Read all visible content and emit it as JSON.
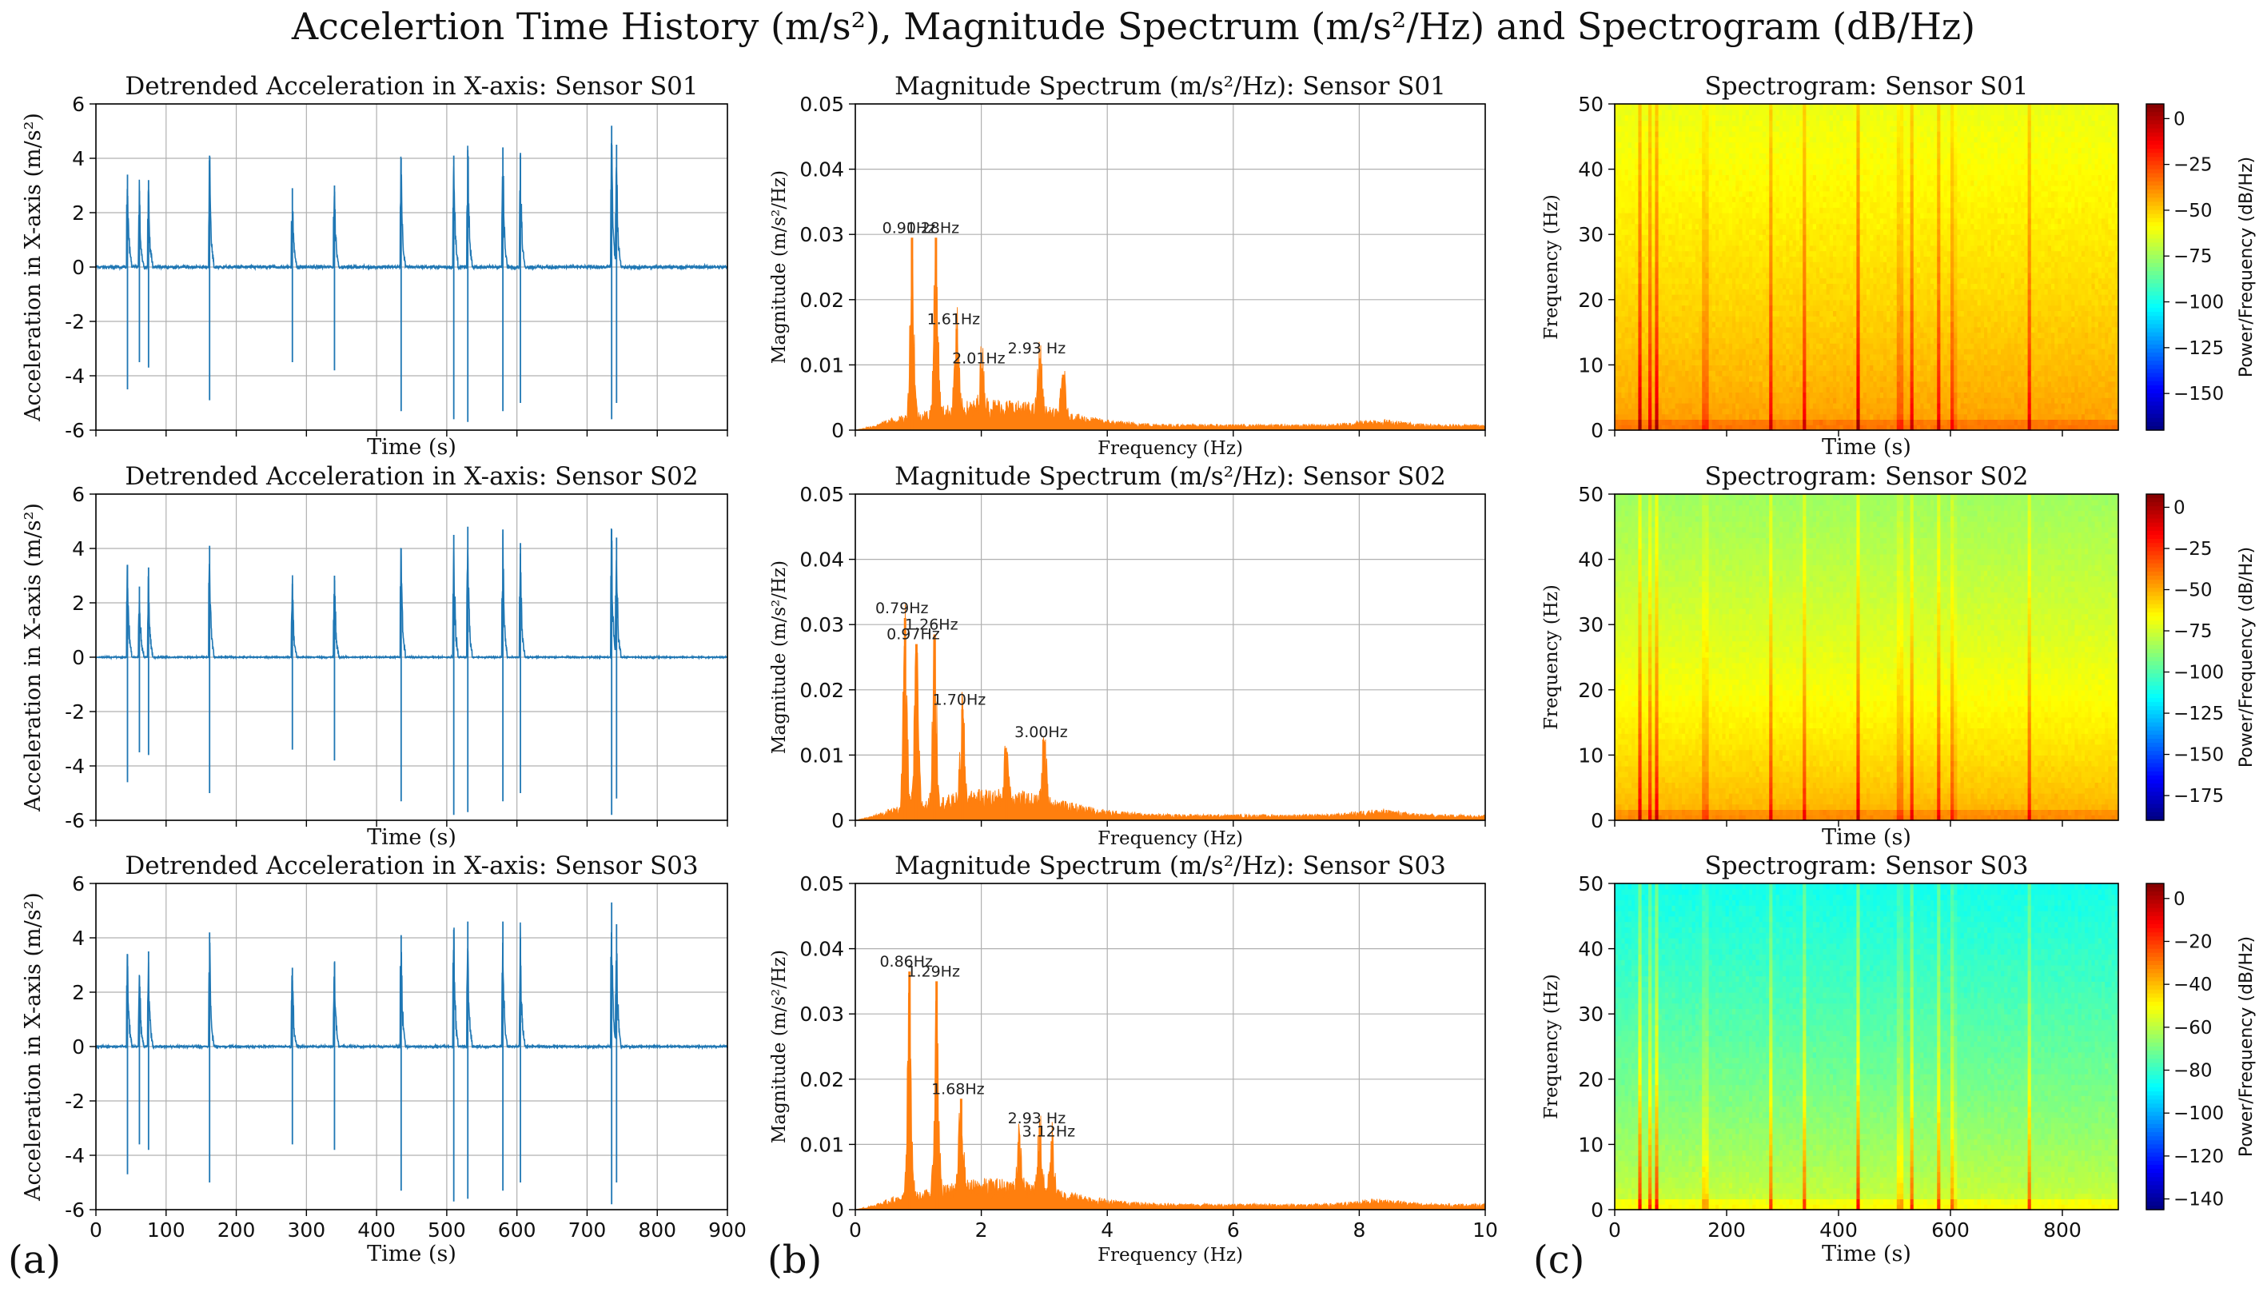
{
  "title": "Accelertion Time History (m/s²), Magnitude Spectrum (m/s²/Hz) and Spectrogram (dB/Hz)",
  "panel_labels": [
    "(a)",
    "(b)",
    "(c)"
  ],
  "colors": {
    "time_series": "#1f77b4",
    "spectrum": "#ff7f0e",
    "grid": "#b0b0b0"
  },
  "chart_data": [
    {
      "id": "ts1",
      "type": "line",
      "title": "Detrended Acceleration in X-axis: Sensor S01",
      "xlabel": "Time (s)",
      "ylabel": "Acceleration in X-axis (m/s²)",
      "xlim": [
        0,
        900
      ],
      "ylim": [
        -6,
        6
      ],
      "xticks": [
        0,
        100,
        200,
        300,
        400,
        500,
        600,
        700,
        800,
        900
      ],
      "yticks": [
        -6,
        -4,
        -2,
        0,
        2,
        4,
        6
      ],
      "show_xticklabels": false,
      "baseline_noise": 0.1,
      "events": [
        [
          45,
          3.4,
          -4.5
        ],
        [
          62,
          2.8,
          -3.5
        ],
        [
          75,
          3.2,
          -3.7
        ],
        [
          162,
          4.1,
          -4.9
        ],
        [
          280,
          2.9,
          -3.5
        ],
        [
          340,
          3.0,
          -3.8
        ],
        [
          435,
          4.0,
          -5.3
        ],
        [
          510,
          4.1,
          -5.6
        ],
        [
          530,
          4.3,
          -5.7
        ],
        [
          580,
          4.4,
          -5.3
        ],
        [
          605,
          4.2,
          -5.0
        ],
        [
          735,
          5.2,
          -5.6
        ],
        [
          742,
          4.5,
          -5.0
        ]
      ]
    },
    {
      "id": "sp1",
      "type": "area",
      "title": "Magnitude Spectrum (m/s²/Hz): Sensor S01",
      "xlabel": "Frequency (Hz)",
      "ylabel": "Magnitude (m/s²/Hz)",
      "xlim": [
        0,
        10
      ],
      "ylim": [
        0,
        0.05
      ],
      "xticks": [
        0,
        2,
        4,
        6,
        8,
        10
      ],
      "yticks": [
        0,
        0.01,
        0.02,
        0.03,
        0.04,
        0.05
      ],
      "show_xticklabels": false,
      "peaks": [
        [
          0.9,
          0.0295
        ],
        [
          1.28,
          0.0295
        ],
        [
          1.61,
          0.0155
        ],
        [
          2.01,
          0.0095
        ],
        [
          2.93,
          0.011
        ],
        [
          3.3,
          0.0085
        ]
      ],
      "annotations": [
        [
          "0.90Hz",
          0.9,
          0.0295
        ],
        [
          "1.28Hz",
          1.28,
          0.0295
        ],
        [
          "1.61Hz",
          1.61,
          0.0155
        ],
        [
          "2.01Hz",
          2.01,
          0.0095
        ],
        [
          "2.93 Hz",
          2.93,
          0.011
        ]
      ]
    },
    {
      "id": "sg1",
      "type": "heatmap",
      "title": "Spectrogram: Sensor S01",
      "xlabel": "Time (s)",
      "ylabel": "Frequency (Hz)",
      "clabel": "Power/Frequency (dB/Hz)",
      "xlim": [
        0,
        900
      ],
      "ylim": [
        0,
        50
      ],
      "xticks": [
        0,
        200,
        400,
        600,
        800
      ],
      "yticks": [
        0,
        10,
        20,
        30,
        40,
        50
      ],
      "show_xticklabels": false,
      "clim": [
        -170,
        8
      ],
      "cticks": [
        0,
        -25,
        -50,
        -75,
        -100,
        -125,
        -150
      ],
      "level_top": -62,
      "level_bottom": -40,
      "events": [
        45,
        62,
        75,
        162,
        280,
        340,
        435,
        510,
        530,
        580,
        605,
        740
      ]
    },
    {
      "id": "ts2",
      "type": "line",
      "title": "Detrended Acceleration in X-axis: Sensor S02",
      "xlabel": "Time (s)",
      "ylabel": "Acceleration in X-axis (m/s²)",
      "xlim": [
        0,
        900
      ],
      "ylim": [
        -6,
        6
      ],
      "xticks": [
        0,
        100,
        200,
        300,
        400,
        500,
        600,
        700,
        800,
        900
      ],
      "yticks": [
        -6,
        -4,
        -2,
        0,
        2,
        4,
        6
      ],
      "show_xticklabels": false,
      "baseline_noise": 0.04,
      "events": [
        [
          45,
          3.4,
          -4.6
        ],
        [
          62,
          2.6,
          -3.5
        ],
        [
          75,
          3.3,
          -3.6
        ],
        [
          162,
          4.1,
          -5.0
        ],
        [
          280,
          2.7,
          -3.4
        ],
        [
          340,
          3.0,
          -3.8
        ],
        [
          435,
          4.0,
          -5.3
        ],
        [
          510,
          4.5,
          -5.8
        ],
        [
          530,
          4.8,
          -5.7
        ],
        [
          580,
          4.7,
          -5.3
        ],
        [
          605,
          4.2,
          -5.0
        ],
        [
          735,
          4.7,
          -5.8
        ],
        [
          742,
          4.4,
          -5.2
        ]
      ]
    },
    {
      "id": "sp2",
      "type": "area",
      "title": "Magnitude Spectrum (m/s²/Hz): Sensor S02",
      "xlabel": "Frequency (Hz)",
      "ylabel": "Magnitude (m/s²/Hz)",
      "xlim": [
        0,
        10
      ],
      "ylim": [
        0,
        0.05
      ],
      "xticks": [
        0,
        2,
        4,
        6,
        8,
        10
      ],
      "yticks": [
        0,
        0.01,
        0.02,
        0.03,
        0.04,
        0.05
      ],
      "show_xticklabels": false,
      "peaks": [
        [
          0.79,
          0.031
        ],
        [
          0.97,
          0.027
        ],
        [
          1.26,
          0.0285
        ],
        [
          1.7,
          0.017
        ],
        [
          2.4,
          0.01
        ],
        [
          3.0,
          0.012
        ]
      ],
      "annotations": [
        [
          "0.79Hz",
          0.79,
          0.031
        ],
        [
          "0.97Hz",
          0.97,
          0.027
        ],
        [
          "1.26Hz",
          1.26,
          0.0285
        ],
        [
          "1.70Hz",
          1.7,
          0.017
        ],
        [
          "3.00Hz",
          3.0,
          0.012
        ]
      ]
    },
    {
      "id": "sg2",
      "type": "heatmap",
      "title": "Spectrogram: Sensor S02",
      "xlabel": "Time (s)",
      "ylabel": "Frequency (Hz)",
      "clabel": "Power/Frequency (dB/Hz)",
      "xlim": [
        0,
        900
      ],
      "ylim": [
        0,
        50
      ],
      "xticks": [
        0,
        200,
        400,
        600,
        800
      ],
      "yticks": [
        0,
        10,
        20,
        30,
        40,
        50
      ],
      "show_xticklabels": false,
      "clim": [
        -190,
        8
      ],
      "cticks": [
        0,
        -25,
        -50,
        -75,
        -100,
        -125,
        -150,
        -175
      ],
      "level_top": -85,
      "level_bottom": -48,
      "events": [
        45,
        62,
        75,
        162,
        280,
        340,
        435,
        510,
        530,
        580,
        605,
        740
      ]
    },
    {
      "id": "ts3",
      "type": "line",
      "title": "Detrended Acceleration in X-axis: Sensor S03",
      "xlabel": "Time (s)",
      "ylabel": "Acceleration in X-axis (m/s²)",
      "xlim": [
        0,
        900
      ],
      "ylim": [
        -6,
        6
      ],
      "xticks": [
        0,
        100,
        200,
        300,
        400,
        500,
        600,
        700,
        800,
        900
      ],
      "yticks": [
        -6,
        -4,
        -2,
        0,
        2,
        4,
        6
      ],
      "show_xticklabels": true,
      "baseline_noise": 0.06,
      "events": [
        [
          45,
          3.4,
          -4.7
        ],
        [
          62,
          2.6,
          -3.6
        ],
        [
          75,
          3.5,
          -3.8
        ],
        [
          162,
          4.2,
          -5.0
        ],
        [
          280,
          2.9,
          -3.6
        ],
        [
          340,
          3.1,
          -3.8
        ],
        [
          435,
          4.1,
          -5.3
        ],
        [
          510,
          4.3,
          -5.7
        ],
        [
          530,
          4.6,
          -5.6
        ],
        [
          580,
          4.6,
          -5.3
        ],
        [
          605,
          4.0,
          -5.0
        ],
        [
          735,
          5.3,
          -5.8
        ],
        [
          742,
          4.5,
          -5.0
        ]
      ]
    },
    {
      "id": "sp3",
      "type": "area",
      "title": "Magnitude Spectrum (m/s²/Hz): Sensor S03",
      "xlabel": "Frequency (Hz)",
      "ylabel": "Magnitude (m/s²/Hz)",
      "xlim": [
        0,
        10
      ],
      "ylim": [
        0,
        0.05
      ],
      "xticks": [
        0,
        2,
        4,
        6,
        8,
        10
      ],
      "yticks": [
        0,
        0.01,
        0.02,
        0.03,
        0.04,
        0.05
      ],
      "show_xticklabels": true,
      "peaks": [
        [
          0.86,
          0.0365
        ],
        [
          1.29,
          0.035
        ],
        [
          1.68,
          0.017
        ],
        [
          2.6,
          0.009
        ],
        [
          2.93,
          0.0125
        ],
        [
          3.12,
          0.0105
        ]
      ],
      "annotations": [
        [
          "0.86Hz",
          0.86,
          0.0365
        ],
        [
          "1.29Hz",
          1.29,
          0.035
        ],
        [
          "1.68Hz",
          1.68,
          0.017
        ],
        [
          "2.93 Hz",
          2.93,
          0.0125
        ],
        [
          "3.12Hz",
          3.12,
          0.0105
        ]
      ]
    },
    {
      "id": "sg3",
      "type": "heatmap",
      "title": "Spectrogram: Sensor S03",
      "xlabel": "Time (s)",
      "ylabel": "Frequency (Hz)",
      "clabel": "Power/Frequency (dB/Hz)",
      "xlim": [
        0,
        900
      ],
      "ylim": [
        0,
        50
      ],
      "xticks": [
        0,
        200,
        400,
        600,
        800
      ],
      "yticks": [
        0,
        10,
        20,
        30,
        40,
        50
      ],
      "show_xticklabels": true,
      "clim": [
        -145,
        7
      ],
      "cticks": [
        0,
        -20,
        -40,
        -60,
        -80,
        -100,
        -120,
        -140
      ],
      "level_top": -85,
      "level_bottom": -55,
      "events": [
        45,
        62,
        75,
        162,
        280,
        340,
        435,
        510,
        530,
        580,
        605,
        740
      ]
    }
  ]
}
